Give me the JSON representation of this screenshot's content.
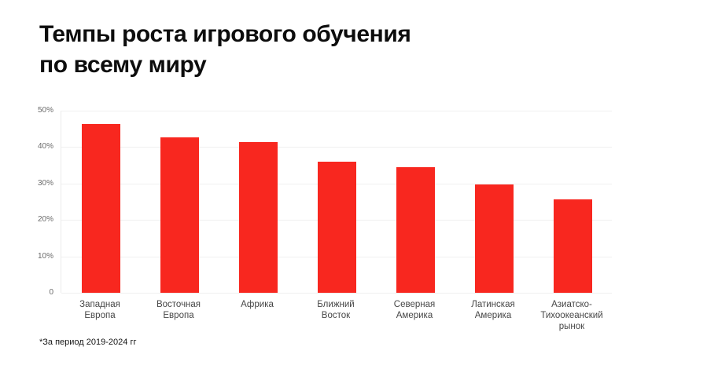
{
  "page": {
    "background_color": "#ffffff"
  },
  "header": {
    "title_line1": "Темпы роста игрового обучения",
    "title_line2": "по всему миру"
  },
  "footnote": "*За период 2019-2024 гг",
  "chart_data": {
    "type": "bar",
    "title": "Темпы роста игрового обучения по всему миру",
    "subtitle": "",
    "xlabel": "",
    "ylabel": "",
    "unit": "%",
    "categories": [
      "Западная Европа",
      "Восточная Европа",
      "Африка",
      "Ближний Восток",
      "Северная Америка",
      "Латинская Америка",
      "Азиатско-Тихоокеанский рынок"
    ],
    "category_lines": [
      [
        "Западная",
        "Европа"
      ],
      [
        "Восточная",
        "Европа"
      ],
      [
        "Африка"
      ],
      [
        "Ближний",
        "Восток"
      ],
      [
        "Северная",
        "Америка"
      ],
      [
        "Латинская",
        "Америка"
      ],
      [
        "Азиатско-",
        "Тихоокеанский",
        "рынок"
      ]
    ],
    "values": [
      46.3,
      42.7,
      41.4,
      36.0,
      34.6,
      29.7,
      25.7
    ],
    "ylim": [
      0,
      50
    ],
    "yticks": [
      {
        "value": 0,
        "label": "0"
      },
      {
        "value": 10,
        "label": "10%"
      },
      {
        "value": 20,
        "label": "20%"
      },
      {
        "value": 30,
        "label": "30%"
      },
      {
        "value": 40,
        "label": "40%"
      },
      {
        "value": 50,
        "label": "50%"
      }
    ],
    "grid": true,
    "legend": false,
    "bar_color": "#f8271f",
    "grid_color": "#f0f0f0",
    "axis_line_color": "#ebebeb",
    "tick_label_color": "#6b6b6b",
    "category_label_color": "#474747",
    "footnote": "*За период 2019-2024 гг"
  }
}
